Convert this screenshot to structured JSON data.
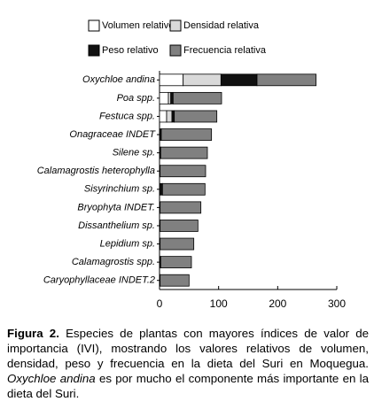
{
  "chart_data": {
    "type": "stacked-barh",
    "categories": [
      "Oxychloe andina",
      "Poa spp.",
      "Festuca spp.",
      "Onagraceae INDET",
      "Silene sp.",
      "Calamagrostis heterophylla",
      "Sisyrinchium sp.",
      "Bryophyta INDET.",
      "Dissanthelium sp.",
      "Lepidium sp.",
      "Calamagrostis spp.",
      "Caryophyllaceae INDET.2"
    ],
    "series": [
      {
        "name": "Volumen relativo",
        "color": "#ffffff",
        "values": [
          40,
          15,
          12,
          0,
          0,
          0,
          0,
          0,
          0,
          0,
          0,
          0
        ]
      },
      {
        "name": "Densidad relativa",
        "color": "#d9d9d9",
        "values": [
          64,
          4,
          9,
          0,
          0,
          0,
          0,
          0,
          0,
          0,
          0,
          0
        ]
      },
      {
        "name": "Peso relativo",
        "color": "#111111",
        "values": [
          61,
          4,
          4,
          3,
          2,
          1,
          5,
          1,
          1,
          1,
          2,
          1
        ]
      },
      {
        "name": "Frecuencia relativa",
        "color": "#808080",
        "values": [
          100,
          82,
          72,
          85,
          79,
          77,
          72,
          69,
          64,
          57,
          52,
          49
        ]
      }
    ],
    "xlim": [
      0,
      300
    ],
    "xticks": [
      0,
      100,
      200,
      300
    ]
  },
  "caption": {
    "label": "Figura 2.",
    "text": "Especies de plantas con mayores índices de valor de importancia (IVI), mostrando los valores relativos de volumen, densidad, peso y frecuencia en la dieta del Suri en Moquegua.",
    "italic": "Oxychloe andina",
    "text2": "es por mucho el componente más importante en la dieta del Suri."
  }
}
